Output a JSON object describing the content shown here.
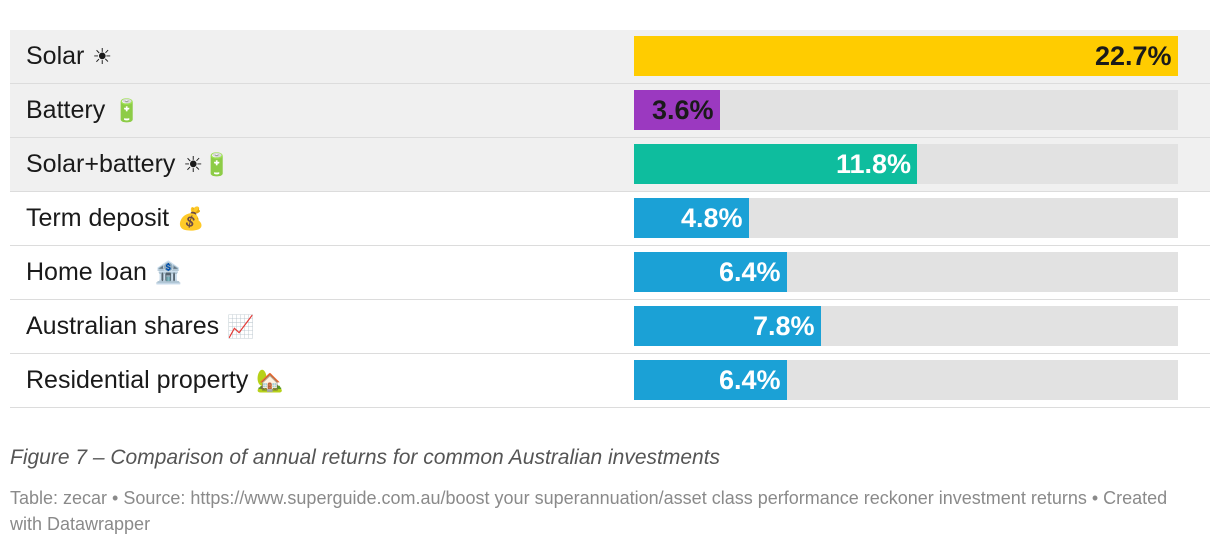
{
  "chart_data": {
    "type": "bar",
    "orientation": "horizontal",
    "categories": [
      "Solar",
      "Battery",
      "Solar+battery",
      "Term deposit",
      "Home loan",
      "Australian shares",
      "Residential property"
    ],
    "category_icons": [
      "☀",
      "🔋",
      "☀🔋",
      "💰",
      "🏦",
      "📈",
      "🏡"
    ],
    "values": [
      22.7,
      3.6,
      11.8,
      4.8,
      6.4,
      7.8,
      6.4
    ],
    "value_labels": [
      "22.7%",
      "3.6%",
      "11.8%",
      "4.8%",
      "6.4%",
      "7.8%",
      "6.4%"
    ],
    "bar_colors": [
      "#ffcc00",
      "#9b39c0",
      "#0ebd9e",
      "#1ba1d6",
      "#1ba1d6",
      "#1ba1d6",
      "#1ba1d6"
    ],
    "label_colors": [
      "#1a1a1a",
      "#1a1a1a",
      "#ffffff",
      "#ffffff",
      "#ffffff",
      "#ffffff",
      "#ffffff"
    ],
    "shaded_rows": [
      true,
      true,
      true,
      false,
      false,
      false,
      false
    ],
    "xlim": [
      0,
      22.7
    ],
    "track_color": "#e2e2e2"
  },
  "caption": "Figure 7 – Comparison of annual returns for common Australian investments",
  "notes": "Table: zecar • Source: https://www.superguide.com.au/boost your superannuation/asset class performance reckoner investment returns • Created with Datawrapper"
}
